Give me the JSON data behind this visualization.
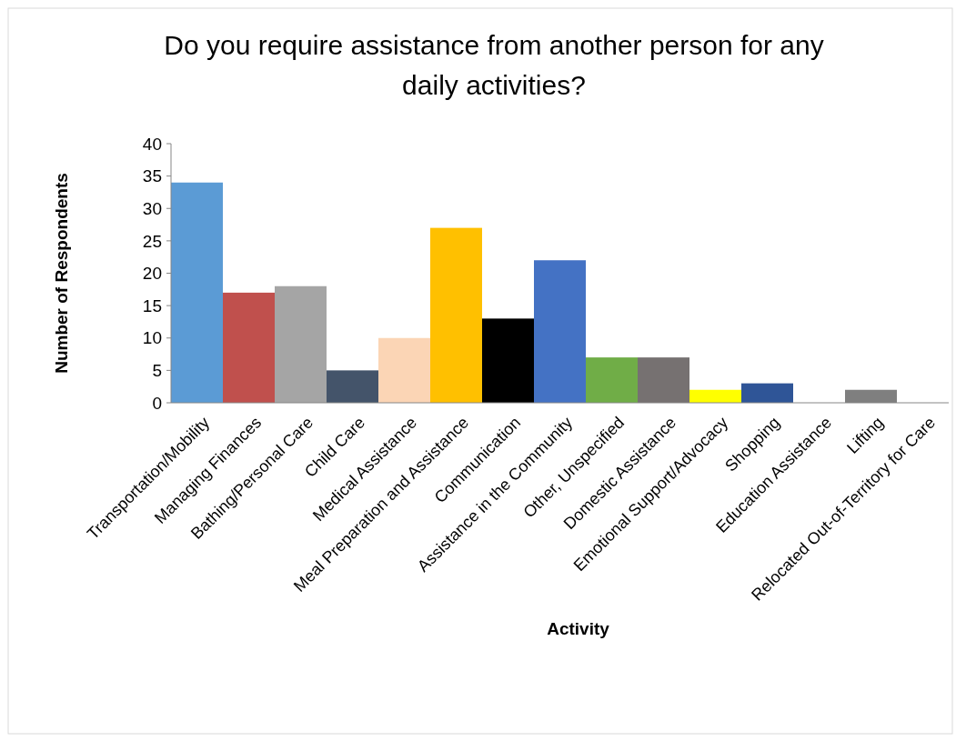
{
  "chart_data": {
    "type": "bar",
    "title": "Do you require assistance from another person for any daily activities?",
    "xlabel": "Activity",
    "ylabel": "Number of Respondents",
    "categories": [
      "Transportation/Mobility",
      "Managing Finances",
      "Bathing/Personal Care",
      "Child Care",
      "Medical Assistance",
      "Meal Preparation and Assistance",
      "Communication",
      "Assistance in the Community",
      "Other, Unspecified",
      "Domestic Assistance",
      "Emotional Support/Advocacy",
      "Shopping",
      "Education Assistance",
      "Lifting",
      "Relocated Out-of-Territory for Care"
    ],
    "values": [
      34,
      17,
      18,
      5,
      10,
      27,
      13,
      22,
      7,
      7,
      2,
      3,
      0,
      2,
      0
    ],
    "colors": [
      "#5b9bd5",
      "#c0504d",
      "#a5a5a5",
      "#44546a",
      "#fbd5b5",
      "#ffc000",
      "#000000",
      "#4472c4",
      "#70ad47",
      "#767171",
      "#ffff00",
      "#2f5597",
      "#7f7f7f",
      "#7f7f7f",
      "#7f7f7f"
    ],
    "ylim": [
      0,
      40
    ],
    "yticks": [
      0,
      5,
      10,
      15,
      20,
      25,
      30,
      35,
      40
    ],
    "grid": false
  }
}
